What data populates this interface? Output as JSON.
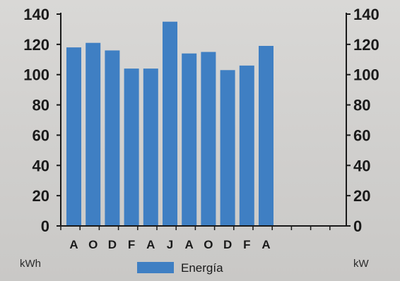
{
  "chart_data": {
    "type": "bar",
    "categories": [
      "A",
      "O",
      "D",
      "F",
      "A",
      "J",
      "A",
      "O",
      "D",
      "F",
      "A"
    ],
    "series": [
      {
        "name": "Energía",
        "color": "#3f7fc3",
        "values": [
          118,
          121,
          116,
          104,
          104,
          135,
          114,
          115,
          103,
          106,
          119
        ]
      }
    ],
    "ylim": [
      0,
      140
    ],
    "yticks": [
      0,
      20,
      40,
      60,
      80,
      100,
      120,
      140
    ],
    "ylabel_left": "kWh",
    "ylabel_right": "kW",
    "legend": {
      "position": "bottom",
      "label": "Energía"
    },
    "grid": false,
    "secondary_axis": true
  }
}
